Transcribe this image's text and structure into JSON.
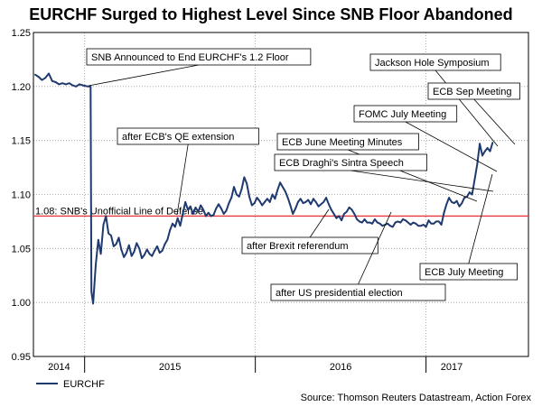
{
  "chart_data": {
    "type": "line",
    "title": "EURCHF Surged to Highest Level Since SNB Floor Abandoned",
    "source": "Source: Thomson Reuters Datastream, Action Forex",
    "xlabel": "",
    "ylabel": "",
    "ylim": [
      0.95,
      1.25
    ],
    "xlim": [
      2014.7,
      2017.6
    ],
    "grid": true,
    "yticks": [
      {
        "value": 0.95,
        "label": "0.95"
      },
      {
        "value": 1.0,
        "label": "1.00"
      },
      {
        "value": 1.05,
        "label": "1.05"
      },
      {
        "value": 1.1,
        "label": "1.10"
      },
      {
        "value": 1.15,
        "label": "1.15"
      },
      {
        "value": 1.2,
        "label": "1.20"
      },
      {
        "value": 1.25,
        "label": "1.25"
      }
    ],
    "year_boundaries": [
      2015.0,
      2016.0,
      2017.0
    ],
    "xtick_labels": [
      {
        "x": 2014.85,
        "label": "2014"
      },
      {
        "x": 2015.5,
        "label": "2015"
      },
      {
        "x": 2016.5,
        "label": "2016"
      },
      {
        "x": 2017.15,
        "label": "2017"
      }
    ],
    "reference_line": {
      "value": 1.08,
      "label": "1.08: SNB's Unofficial Line of Defense",
      "color": "#e8373f"
    },
    "series": [
      {
        "name": "EURCHF",
        "color": "#1f3a6e",
        "points": [
          [
            2014.71,
            1.211
          ],
          [
            2014.73,
            1.209
          ],
          [
            2014.75,
            1.206
          ],
          [
            2014.77,
            1.208
          ],
          [
            2014.79,
            1.212
          ],
          [
            2014.81,
            1.205
          ],
          [
            2014.83,
            1.204
          ],
          [
            2014.85,
            1.202
          ],
          [
            2014.87,
            1.203
          ],
          [
            2014.89,
            1.202
          ],
          [
            2014.91,
            1.203
          ],
          [
            2014.93,
            1.201
          ],
          [
            2014.95,
            1.2
          ],
          [
            2014.97,
            1.202
          ],
          [
            2014.99,
            1.201
          ],
          [
            2015.02,
            1.2
          ],
          [
            2015.035,
            1.2
          ],
          [
            2015.04,
            1.01
          ],
          [
            2015.05,
            0.999
          ],
          [
            2015.065,
            1.035
          ],
          [
            2015.08,
            1.058
          ],
          [
            2015.095,
            1.045
          ],
          [
            2015.11,
            1.072
          ],
          [
            2015.125,
            1.08
          ],
          [
            2015.14,
            1.064
          ],
          [
            2015.155,
            1.062
          ],
          [
            2015.17,
            1.052
          ],
          [
            2015.185,
            1.054
          ],
          [
            2015.2,
            1.06
          ],
          [
            2015.215,
            1.049
          ],
          [
            2015.23,
            1.042
          ],
          [
            2015.245,
            1.046
          ],
          [
            2015.26,
            1.053
          ],
          [
            2015.275,
            1.043
          ],
          [
            2015.29,
            1.047
          ],
          [
            2015.305,
            1.055
          ],
          [
            2015.32,
            1.05
          ],
          [
            2015.335,
            1.041
          ],
          [
            2015.35,
            1.044
          ],
          [
            2015.365,
            1.049
          ],
          [
            2015.38,
            1.045
          ],
          [
            2015.395,
            1.043
          ],
          [
            2015.41,
            1.048
          ],
          [
            2015.425,
            1.052
          ],
          [
            2015.44,
            1.046
          ],
          [
            2015.455,
            1.048
          ],
          [
            2015.47,
            1.054
          ],
          [
            2015.485,
            1.058
          ],
          [
            2015.5,
            1.067
          ],
          [
            2015.515,
            1.073
          ],
          [
            2015.53,
            1.07
          ],
          [
            2015.545,
            1.078
          ],
          [
            2015.56,
            1.071
          ],
          [
            2015.575,
            1.082
          ],
          [
            2015.59,
            1.093
          ],
          [
            2015.605,
            1.086
          ],
          [
            2015.62,
            1.089
          ],
          [
            2015.635,
            1.082
          ],
          [
            2015.65,
            1.088
          ],
          [
            2015.665,
            1.084
          ],
          [
            2015.68,
            1.09
          ],
          [
            2015.695,
            1.086
          ],
          [
            2015.71,
            1.08
          ],
          [
            2015.725,
            1.083
          ],
          [
            2015.74,
            1.08
          ],
          [
            2015.755,
            1.081
          ],
          [
            2015.77,
            1.087
          ],
          [
            2015.785,
            1.091
          ],
          [
            2015.8,
            1.087
          ],
          [
            2015.815,
            1.082
          ],
          [
            2015.83,
            1.085
          ],
          [
            2015.845,
            1.092
          ],
          [
            2015.86,
            1.097
          ],
          [
            2015.875,
            1.107
          ],
          [
            2015.89,
            1.1
          ],
          [
            2015.905,
            1.098
          ],
          [
            2015.92,
            1.105
          ],
          [
            2015.935,
            1.116
          ],
          [
            2015.95,
            1.11
          ],
          [
            2015.965,
            1.098
          ],
          [
            2015.98,
            1.09
          ],
          [
            2015.995,
            1.092
          ],
          [
            2016.01,
            1.097
          ],
          [
            2016.025,
            1.094
          ],
          [
            2016.04,
            1.09
          ],
          [
            2016.055,
            1.093
          ],
          [
            2016.07,
            1.096
          ],
          [
            2016.085,
            1.093
          ],
          [
            2016.1,
            1.1
          ],
          [
            2016.115,
            1.096
          ],
          [
            2016.13,
            1.104
          ],
          [
            2016.145,
            1.111
          ],
          [
            2016.16,
            1.107
          ],
          [
            2016.175,
            1.103
          ],
          [
            2016.19,
            1.097
          ],
          [
            2016.205,
            1.09
          ],
          [
            2016.22,
            1.082
          ],
          [
            2016.235,
            1.087
          ],
          [
            2016.25,
            1.093
          ],
          [
            2016.265,
            1.096
          ],
          [
            2016.28,
            1.092
          ],
          [
            2016.295,
            1.093
          ],
          [
            2016.31,
            1.095
          ],
          [
            2016.325,
            1.091
          ],
          [
            2016.34,
            1.096
          ],
          [
            2016.355,
            1.093
          ],
          [
            2016.37,
            1.089
          ],
          [
            2016.385,
            1.091
          ],
          [
            2016.4,
            1.093
          ],
          [
            2016.415,
            1.097
          ],
          [
            2016.43,
            1.091
          ],
          [
            2016.445,
            1.086
          ],
          [
            2016.46,
            1.082
          ],
          [
            2016.475,
            1.078
          ],
          [
            2016.49,
            1.08
          ],
          [
            2016.505,
            1.076
          ],
          [
            2016.52,
            1.082
          ],
          [
            2016.535,
            1.084
          ],
          [
            2016.55,
            1.088
          ],
          [
            2016.565,
            1.086
          ],
          [
            2016.58,
            1.082
          ],
          [
            2016.595,
            1.077
          ],
          [
            2016.61,
            1.075
          ],
          [
            2016.625,
            1.074
          ],
          [
            2016.64,
            1.077
          ],
          [
            2016.655,
            1.074
          ],
          [
            2016.67,
            1.074
          ],
          [
            2016.685,
            1.073
          ],
          [
            2016.7,
            1.077
          ],
          [
            2016.715,
            1.074
          ],
          [
            2016.73,
            1.073
          ],
          [
            2016.745,
            1.071
          ],
          [
            2016.76,
            1.072
          ],
          [
            2016.775,
            1.073
          ],
          [
            2016.79,
            1.071
          ],
          [
            2016.805,
            1.07
          ],
          [
            2016.82,
            1.074
          ],
          [
            2016.835,
            1.075
          ],
          [
            2016.85,
            1.074
          ],
          [
            2016.865,
            1.077
          ],
          [
            2016.88,
            1.076
          ],
          [
            2016.895,
            1.074
          ],
          [
            2016.91,
            1.072
          ],
          [
            2016.925,
            1.074
          ],
          [
            2016.94,
            1.073
          ],
          [
            2016.955,
            1.071
          ],
          [
            2016.97,
            1.071
          ],
          [
            2016.985,
            1.072
          ],
          [
            2017.0,
            1.07
          ],
          [
            2017.015,
            1.076
          ],
          [
            2017.03,
            1.073
          ],
          [
            2017.045,
            1.073
          ],
          [
            2017.06,
            1.075
          ],
          [
            2017.075,
            1.075
          ],
          [
            2017.09,
            1.072
          ],
          [
            2017.105,
            1.083
          ],
          [
            2017.12,
            1.091
          ],
          [
            2017.135,
            1.097
          ],
          [
            2017.15,
            1.093
          ],
          [
            2017.165,
            1.092
          ],
          [
            2017.18,
            1.094
          ],
          [
            2017.195,
            1.089
          ],
          [
            2017.21,
            1.092
          ],
          [
            2017.225,
            1.097
          ],
          [
            2017.24,
            1.098
          ],
          [
            2017.255,
            1.102
          ],
          [
            2017.27,
            1.1
          ],
          [
            2017.285,
            1.114
          ],
          [
            2017.3,
            1.128
          ],
          [
            2017.315,
            1.147
          ],
          [
            2017.33,
            1.136
          ],
          [
            2017.345,
            1.14
          ],
          [
            2017.36,
            1.143
          ],
          [
            2017.375,
            1.14
          ],
          [
            2017.39,
            1.148
          ]
        ]
      }
    ],
    "legend": {
      "position": "bottom-left",
      "label": "EURCHF"
    },
    "annotations": [
      {
        "text": "SNB Announced to End EURCHF's 1.2 Floor",
        "x": 2015.03,
        "y": 1.2
      },
      {
        "text": "Jackson Hole Symposium",
        "x": 2017.37,
        "y": 1.141
      },
      {
        "text": "ECB Sep Meeting",
        "x": 2017.38,
        "y": 1.142
      },
      {
        "text": "FOMC July Meeting",
        "x": 2017.3,
        "y": 1.122
      },
      {
        "text": "after ECB's QE extension",
        "x": 2015.85,
        "y": 1.09
      },
      {
        "text": "ECB June Meeting Minutes",
        "x": 2017.2,
        "y": 1.096
      },
      {
        "text": "ECB Draghi's Sintra Speech",
        "x": 2017.25,
        "y": 1.1
      },
      {
        "text": "after Brexit referendum",
        "x": 2016.43,
        "y": 1.087
      },
      {
        "text": "after US presidential election",
        "x": 2016.52,
        "y": 1.083
      },
      {
        "text": "ECB July Meeting",
        "x": 2017.29,
        "y": 1.128
      }
    ]
  }
}
